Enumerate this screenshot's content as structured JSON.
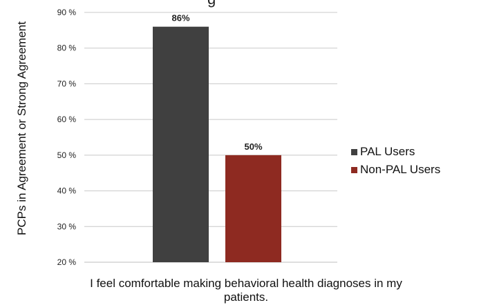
{
  "chart_data": {
    "type": "bar",
    "title_fragment": "g",
    "ylabel": "PCPs in Agreement or Strong Agreement",
    "xlabel": "I feel comfortable making behavioral health diagnoses in my patients.",
    "categories": [
      "I feel comfortable making behavioral health diagnoses in my patients."
    ],
    "ylim": [
      20,
      90
    ],
    "yticks": [
      20,
      30,
      40,
      50,
      60,
      70,
      80,
      90
    ],
    "ytick_labels": [
      "20 %",
      "30 %",
      "40 %",
      "50 %",
      "60 %",
      "70 %",
      "80 %",
      "90 %"
    ],
    "grid": true,
    "legend_position": "right",
    "series": [
      {
        "name": "PAL Users",
        "values": [
          86
        ],
        "label": "86%",
        "color": "#404040"
      },
      {
        "name": "Non-PAL Users",
        "values": [
          50
        ],
        "label": "50%",
        "color": "#8e2a21"
      }
    ]
  }
}
